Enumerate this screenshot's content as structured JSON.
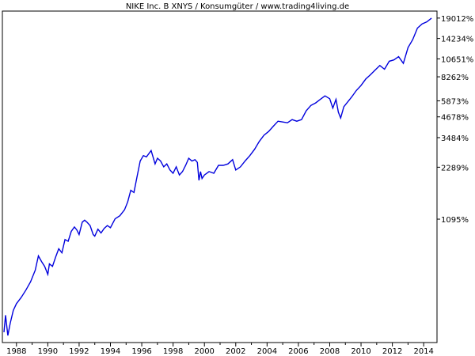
{
  "chart_data": {
    "type": "line",
    "title": "NIKE Inc. B XNYS / Konsumgüter / www.trading4living.de",
    "xlabel": "",
    "ylabel": "",
    "y_scale": "log",
    "grid": false,
    "line_color": "#0000dd",
    "x_ticks": [
      "1988",
      "1990",
      "1992",
      "1994",
      "1996",
      "1998",
      "2000",
      "2002",
      "2004",
      "2006",
      "2008",
      "2010",
      "2012",
      "2014"
    ],
    "y_ticks": [
      {
        "label": "19012%",
        "value": 19012
      },
      {
        "label": "14234%",
        "value": 14234
      },
      {
        "label": "10651%",
        "value": 10651
      },
      {
        "label": "8262%",
        "value": 8262
      },
      {
        "label": "5873%",
        "value": 5873
      },
      {
        "label": "4678%",
        "value": 4678
      },
      {
        "label": "3484%",
        "value": 3484
      },
      {
        "label": "2289%",
        "value": 2289
      },
      {
        "label": "1095%",
        "value": 1095
      }
    ],
    "xlim": [
      1987.1,
      2014.85
    ],
    "ylim": [
      190,
      21000
    ],
    "series": [
      {
        "x": [
          1987.2,
          1987.3,
          1987.45,
          1987.6,
          1987.8,
          1988.0,
          1988.3,
          1988.6,
          1988.9,
          1989.2,
          1989.4,
          1989.6,
          1989.8,
          1990.0,
          1990.1,
          1990.3,
          1990.5,
          1990.7,
          1990.9,
          1991.1,
          1991.3,
          1991.5,
          1991.7,
          1991.85,
          1992.0,
          1992.2,
          1992.35,
          1992.5,
          1992.7,
          1992.9,
          1993.0,
          1993.2,
          1993.4,
          1993.6,
          1993.8,
          1994.0,
          1994.3,
          1994.6,
          1994.9,
          1995.1,
          1995.3,
          1995.5,
          1995.7,
          1995.9,
          1996.1,
          1996.3,
          1996.6,
          1996.85,
          1997.0,
          1997.2,
          1997.4,
          1997.6,
          1997.8,
          1998.0,
          1998.2,
          1998.4,
          1998.6,
          1998.8,
          1999.0,
          1999.2,
          1999.4,
          1999.55,
          1999.65,
          1999.75,
          1999.85,
          2000.0,
          2000.3,
          2000.6,
          2000.9,
          2001.2,
          2001.5,
          2001.8,
          2002.0,
          2002.3,
          2002.6,
          2002.9,
          2003.2,
          2003.5,
          2003.8,
          2004.1,
          2004.4,
          2004.7,
          2005.0,
          2005.3,
          2005.6,
          2005.9,
          2006.2,
          2006.5,
          2006.8,
          2007.1,
          2007.4,
          2007.7,
          2008.0,
          2008.2,
          2008.4,
          2008.55,
          2008.7,
          2008.9,
          2009.1,
          2009.4,
          2009.7,
          2010.0,
          2010.3,
          2010.6,
          2010.9,
          2011.2,
          2011.5,
          2011.8,
          2012.1,
          2012.4,
          2012.7,
          2013.0,
          2013.3,
          2013.6,
          2013.9,
          2014.2,
          2014.5
        ],
        "y": [
          220,
          280,
          210,
          250,
          300,
          330,
          360,
          400,
          450,
          530,
          650,
          600,
          560,
          500,
          580,
          560,
          640,
          720,
          680,
          820,
          800,
          920,
          980,
          940,
          880,
          1050,
          1080,
          1050,
          1000,
          880,
          860,
          950,
          900,
          960,
          1000,
          970,
          1100,
          1150,
          1250,
          1400,
          1650,
          1600,
          2000,
          2500,
          2700,
          2650,
          2900,
          2400,
          2600,
          2500,
          2300,
          2400,
          2200,
          2100,
          2300,
          2050,
          2150,
          2350,
          2600,
          2500,
          2550,
          2450,
          1900,
          2150,
          1950,
          2050,
          2150,
          2100,
          2350,
          2350,
          2400,
          2550,
          2200,
          2300,
          2500,
          2700,
          2950,
          3300,
          3600,
          3800,
          4100,
          4400,
          4350,
          4300,
          4500,
          4400,
          4500,
          5100,
          5500,
          5700,
          6000,
          6300,
          6050,
          5300,
          6000,
          5000,
          4600,
          5400,
          5700,
          6200,
          6800,
          7300,
          8000,
          8500,
          9100,
          9700,
          9200,
          10300,
          10500,
          11000,
          10000,
          12500,
          14000,
          16500,
          17500,
          18000,
          19012
        ]
      }
    ]
  }
}
